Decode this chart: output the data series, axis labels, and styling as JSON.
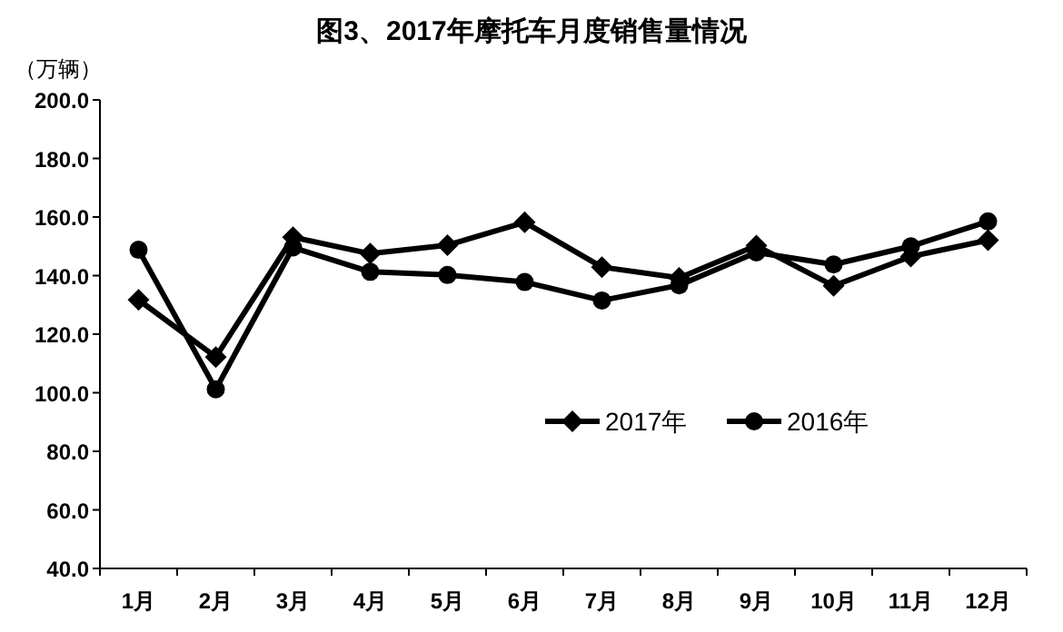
{
  "chart_data": {
    "type": "line",
    "title": "图3、2017年摩托车月度销售量情况",
    "ylabel": "（万辆）",
    "categories": [
      "1月",
      "2月",
      "3月",
      "4月",
      "5月",
      "6月",
      "7月",
      "8月",
      "9月",
      "10月",
      "11月",
      "12月"
    ],
    "series": [
      {
        "name": "2017年",
        "color": "#000000",
        "marker": "diamond",
        "values": [
          131.7,
          112.2,
          153.1,
          147.5,
          150.4,
          158.2,
          142.9,
          139.2,
          150.2,
          136.5,
          146.5,
          152.1
        ]
      },
      {
        "name": "2016年",
        "color": "#000000",
        "marker": "circle",
        "values": [
          148.8,
          101.2,
          149.6,
          141.3,
          140.2,
          137.8,
          131.5,
          136.7,
          147.9,
          143.8,
          150.0,
          158.5
        ]
      }
    ],
    "ylim": [
      40,
      200
    ],
    "yticks": [
      {
        "value": 40,
        "label": "40.0"
      },
      {
        "value": 60,
        "label": "60.0"
      },
      {
        "value": 80,
        "label": "80.0"
      },
      {
        "value": 100,
        "label": "100.0"
      },
      {
        "value": 120,
        "label": "120.0"
      },
      {
        "value": 140,
        "label": "140.0"
      },
      {
        "value": 160,
        "label": "160.0"
      },
      {
        "value": 180,
        "label": "180.0"
      },
      {
        "value": 200,
        "label": "200.0"
      }
    ],
    "grid": false,
    "legend": "right",
    "line_style": "solid"
  }
}
